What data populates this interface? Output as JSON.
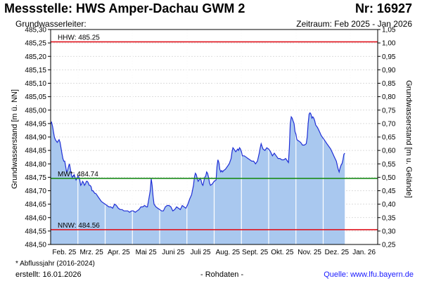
{
  "header": {
    "title": "Messstelle: HWS Amper-Dachau GWM 2",
    "number": "Nr: 16927",
    "aquifer": "Grundwasserleiter:",
    "period": "Zeitraum: Feb 2025 - Jan 2026"
  },
  "footer": {
    "note": "* Abflussjahr (2016-2024)",
    "created": "erstellt:  16.01.2026",
    "raw": "- Rohdaten -",
    "source": "Quelle: www.lfu.bayern.de"
  },
  "colors": {
    "fill": "#a9c8ef",
    "line": "#1f2fd6",
    "hhw": "#e0141e",
    "nnw": "#e0141e",
    "mw": "#1a8c1a",
    "grid": "#d0d0d0"
  },
  "chart_data": {
    "type": "area",
    "ylabel": "Grundwasserstand [m ü. NN]",
    "ylabel_right": "Grundwasserstand [m u. Gelände]",
    "ylim": [
      484.5,
      485.3
    ],
    "yticks": [
      "484,50",
      "484,55",
      "484,60",
      "484,65",
      "484,70",
      "484,75",
      "484,80",
      "484,85",
      "484,90",
      "484,95",
      "485,00",
      "485,05",
      "485,10",
      "485,15",
      "485,20",
      "485,25",
      "485,30"
    ],
    "ylim_right": [
      1.05,
      0.25
    ],
    "yticks_right": [
      "1,05",
      "1,00",
      "0,95",
      "0,90",
      "0,85",
      "0,80",
      "0,75",
      "0,70",
      "0,65",
      "0,60",
      "0,55",
      "0,50",
      "0,45",
      "0,40",
      "0,35",
      "0,30",
      "0,25"
    ],
    "x_labels": [
      "Feb. 25",
      "Mrz. 25",
      "Apr. 25",
      "Mai 25",
      "Juni 25",
      "Juli 25",
      "Aug. 25",
      "Sept. 25",
      "Okt. 25",
      "Nov. 25",
      "Dez. 25",
      "Jan. 26"
    ],
    "x_day_range": [
      0,
      348
    ],
    "grid": true,
    "reference_lines": [
      {
        "label": "HHW: 485.25",
        "value": 485.254,
        "color_key": "hhw"
      },
      {
        "label": "MW*: 484.74",
        "value": 484.746,
        "color_key": "mw"
      },
      {
        "label": "NNW: 484.56",
        "value": 484.555,
        "color_key": "nnw"
      }
    ],
    "series": [
      {
        "points": [
          [
            0,
            484.95
          ],
          [
            1,
            484.955
          ],
          [
            2,
            484.94
          ],
          [
            3,
            484.92
          ],
          [
            4,
            484.9
          ],
          [
            5,
            484.89
          ],
          [
            6,
            484.885
          ],
          [
            7,
            484.88
          ],
          [
            8,
            484.885
          ],
          [
            9,
            484.89
          ],
          [
            10,
            484.88
          ],
          [
            11,
            484.86
          ],
          [
            12,
            484.84
          ],
          [
            13,
            484.82
          ],
          [
            14,
            484.81
          ],
          [
            15,
            484.81
          ],
          [
            16,
            484.79
          ],
          [
            17,
            484.77
          ],
          [
            18,
            484.775
          ],
          [
            19,
            484.79
          ],
          [
            20,
            484.8
          ],
          [
            21,
            484.78
          ],
          [
            22,
            484.76
          ],
          [
            23,
            484.75
          ],
          [
            24,
            484.755
          ],
          [
            25,
            484.76
          ],
          [
            26,
            484.75
          ],
          [
            27,
            484.74
          ],
          [
            28,
            484.745
          ],
          [
            29,
            484.755
          ],
          [
            30,
            484.75
          ],
          [
            31,
            484.74
          ],
          [
            32,
            484.72
          ],
          [
            33,
            484.725
          ],
          [
            34,
            484.735
          ],
          [
            35,
            484.73
          ],
          [
            36,
            484.72
          ],
          [
            37,
            484.725
          ],
          [
            38,
            484.735
          ],
          [
            39,
            484.735
          ],
          [
            40,
            484.73
          ],
          [
            41,
            484.72
          ],
          [
            42,
            484.72
          ],
          [
            43,
            484.715
          ],
          [
            44,
            484.7
          ],
          [
            45,
            484.7
          ],
          [
            46,
            484.695
          ],
          [
            47,
            484.69
          ],
          [
            48,
            484.69
          ],
          [
            49,
            484.685
          ],
          [
            50,
            484.68
          ],
          [
            51,
            484.675
          ],
          [
            52,
            484.67
          ],
          [
            53,
            484.665
          ],
          [
            54,
            484.66
          ],
          [
            56,
            484.655
          ],
          [
            58,
            484.65
          ],
          [
            60,
            484.645
          ],
          [
            62,
            484.64
          ],
          [
            64,
            484.64
          ],
          [
            66,
            484.635
          ],
          [
            68,
            484.65
          ],
          [
            70,
            484.645
          ],
          [
            72,
            484.635
          ],
          [
            74,
            484.63
          ],
          [
            76,
            484.63
          ],
          [
            78,
            484.625
          ],
          [
            80,
            484.625
          ],
          [
            82,
            484.625
          ],
          [
            84,
            484.62
          ],
          [
            86,
            484.625
          ],
          [
            88,
            484.625
          ],
          [
            90,
            484.62
          ],
          [
            92,
            484.625
          ],
          [
            94,
            484.63
          ],
          [
            96,
            484.64
          ],
          [
            98,
            484.64
          ],
          [
            100,
            484.645
          ],
          [
            102,
            484.64
          ],
          [
            103,
            484.64
          ],
          [
            104,
            484.66
          ],
          [
            105,
            484.68
          ],
          [
            106,
            484.7
          ],
          [
            107,
            484.745
          ],
          [
            108,
            484.72
          ],
          [
            109,
            484.68
          ],
          [
            110,
            484.65
          ],
          [
            112,
            484.64
          ],
          [
            114,
            484.635
          ],
          [
            116,
            484.63
          ],
          [
            118,
            484.625
          ],
          [
            120,
            484.625
          ],
          [
            122,
            484.64
          ],
          [
            124,
            484.645
          ],
          [
            126,
            484.645
          ],
          [
            128,
            484.64
          ],
          [
            130,
            484.625
          ],
          [
            132,
            484.63
          ],
          [
            134,
            484.64
          ],
          [
            136,
            484.635
          ],
          [
            138,
            484.63
          ],
          [
            140,
            484.645
          ],
          [
            142,
            484.64
          ],
          [
            144,
            484.635
          ],
          [
            146,
            484.65
          ],
          [
            148,
            484.67
          ],
          [
            150,
            484.685
          ],
          [
            152,
            484.72
          ],
          [
            153,
            484.75
          ],
          [
            154,
            484.765
          ],
          [
            155,
            484.76
          ],
          [
            156,
            484.745
          ],
          [
            157,
            484.735
          ],
          [
            158,
            484.74
          ],
          [
            159,
            484.745
          ],
          [
            160,
            484.74
          ],
          [
            161,
            484.725
          ],
          [
            162,
            484.72
          ],
          [
            163,
            484.735
          ],
          [
            164,
            484.75
          ],
          [
            165,
            484.755
          ],
          [
            166,
            484.77
          ],
          [
            167,
            484.765
          ],
          [
            168,
            484.75
          ],
          [
            169,
            484.73
          ],
          [
            170,
            484.72
          ],
          [
            172,
            484.725
          ],
          [
            174,
            484.735
          ],
          [
            176,
            484.74
          ],
          [
            177,
            484.79
          ],
          [
            178,
            484.815
          ],
          [
            179,
            484.805
          ],
          [
            180,
            484.78
          ],
          [
            181,
            484.77
          ],
          [
            182,
            484.775
          ],
          [
            183,
            484.77
          ],
          [
            184,
            484.775
          ],
          [
            186,
            484.78
          ],
          [
            188,
            484.79
          ],
          [
            190,
            484.8
          ],
          [
            192,
            484.82
          ],
          [
            193,
            484.845
          ],
          [
            194,
            484.86
          ],
          [
            195,
            484.855
          ],
          [
            196,
            484.85
          ],
          [
            197,
            484.845
          ],
          [
            198,
            484.85
          ],
          [
            199,
            484.855
          ],
          [
            200,
            484.85
          ],
          [
            201,
            484.86
          ],
          [
            202,
            484.855
          ],
          [
            203,
            484.845
          ],
          [
            204,
            484.83
          ],
          [
            206,
            484.83
          ],
          [
            208,
            484.825
          ],
          [
            210,
            484.82
          ],
          [
            212,
            484.815
          ],
          [
            214,
            484.81
          ],
          [
            216,
            484.81
          ],
          [
            218,
            484.8
          ],
          [
            220,
            484.81
          ],
          [
            222,
            484.84
          ],
          [
            223,
            484.86
          ],
          [
            224,
            484.875
          ],
          [
            225,
            484.865
          ],
          [
            226,
            484.855
          ],
          [
            228,
            484.85
          ],
          [
            230,
            484.86
          ],
          [
            232,
            484.855
          ],
          [
            234,
            484.845
          ],
          [
            236,
            484.83
          ],
          [
            238,
            484.84
          ],
          [
            240,
            484.83
          ],
          [
            242,
            484.82
          ],
          [
            244,
            484.82
          ],
          [
            246,
            484.815
          ],
          [
            248,
            484.815
          ],
          [
            250,
            484.82
          ],
          [
            252,
            484.81
          ],
          [
            253,
            484.805
          ],
          [
            254,
            484.86
          ],
          [
            255,
            484.95
          ],
          [
            256,
            484.975
          ],
          [
            257,
            484.97
          ],
          [
            258,
            484.96
          ],
          [
            259,
            484.95
          ],
          [
            260,
            484.92
          ],
          [
            261,
            484.91
          ],
          [
            262,
            484.89
          ],
          [
            264,
            484.885
          ],
          [
            266,
            484.88
          ],
          [
            268,
            484.87
          ],
          [
            270,
            484.87
          ],
          [
            272,
            484.875
          ],
          [
            273,
            484.9
          ],
          [
            274,
            484.95
          ],
          [
            275,
            484.985
          ],
          [
            276,
            484.99
          ],
          [
            277,
            484.985
          ],
          [
            278,
            484.97
          ],
          [
            279,
            484.975
          ],
          [
            280,
            484.97
          ],
          [
            281,
            484.96
          ],
          [
            282,
            484.945
          ],
          [
            284,
            484.935
          ],
          [
            286,
            484.92
          ],
          [
            288,
            484.905
          ],
          [
            290,
            484.895
          ],
          [
            292,
            484.885
          ],
          [
            294,
            484.875
          ],
          [
            296,
            484.865
          ],
          [
            298,
            484.855
          ],
          [
            300,
            484.84
          ],
          [
            302,
            484.825
          ],
          [
            304,
            484.81
          ],
          [
            305,
            484.795
          ],
          [
            306,
            484.78
          ],
          [
            307,
            484.77
          ],
          [
            308,
            484.785
          ],
          [
            309,
            484.795
          ],
          [
            310,
            484.8
          ],
          [
            311,
            484.815
          ],
          [
            312,
            484.835
          ],
          [
            313,
            484.84
          ]
        ]
      }
    ]
  }
}
